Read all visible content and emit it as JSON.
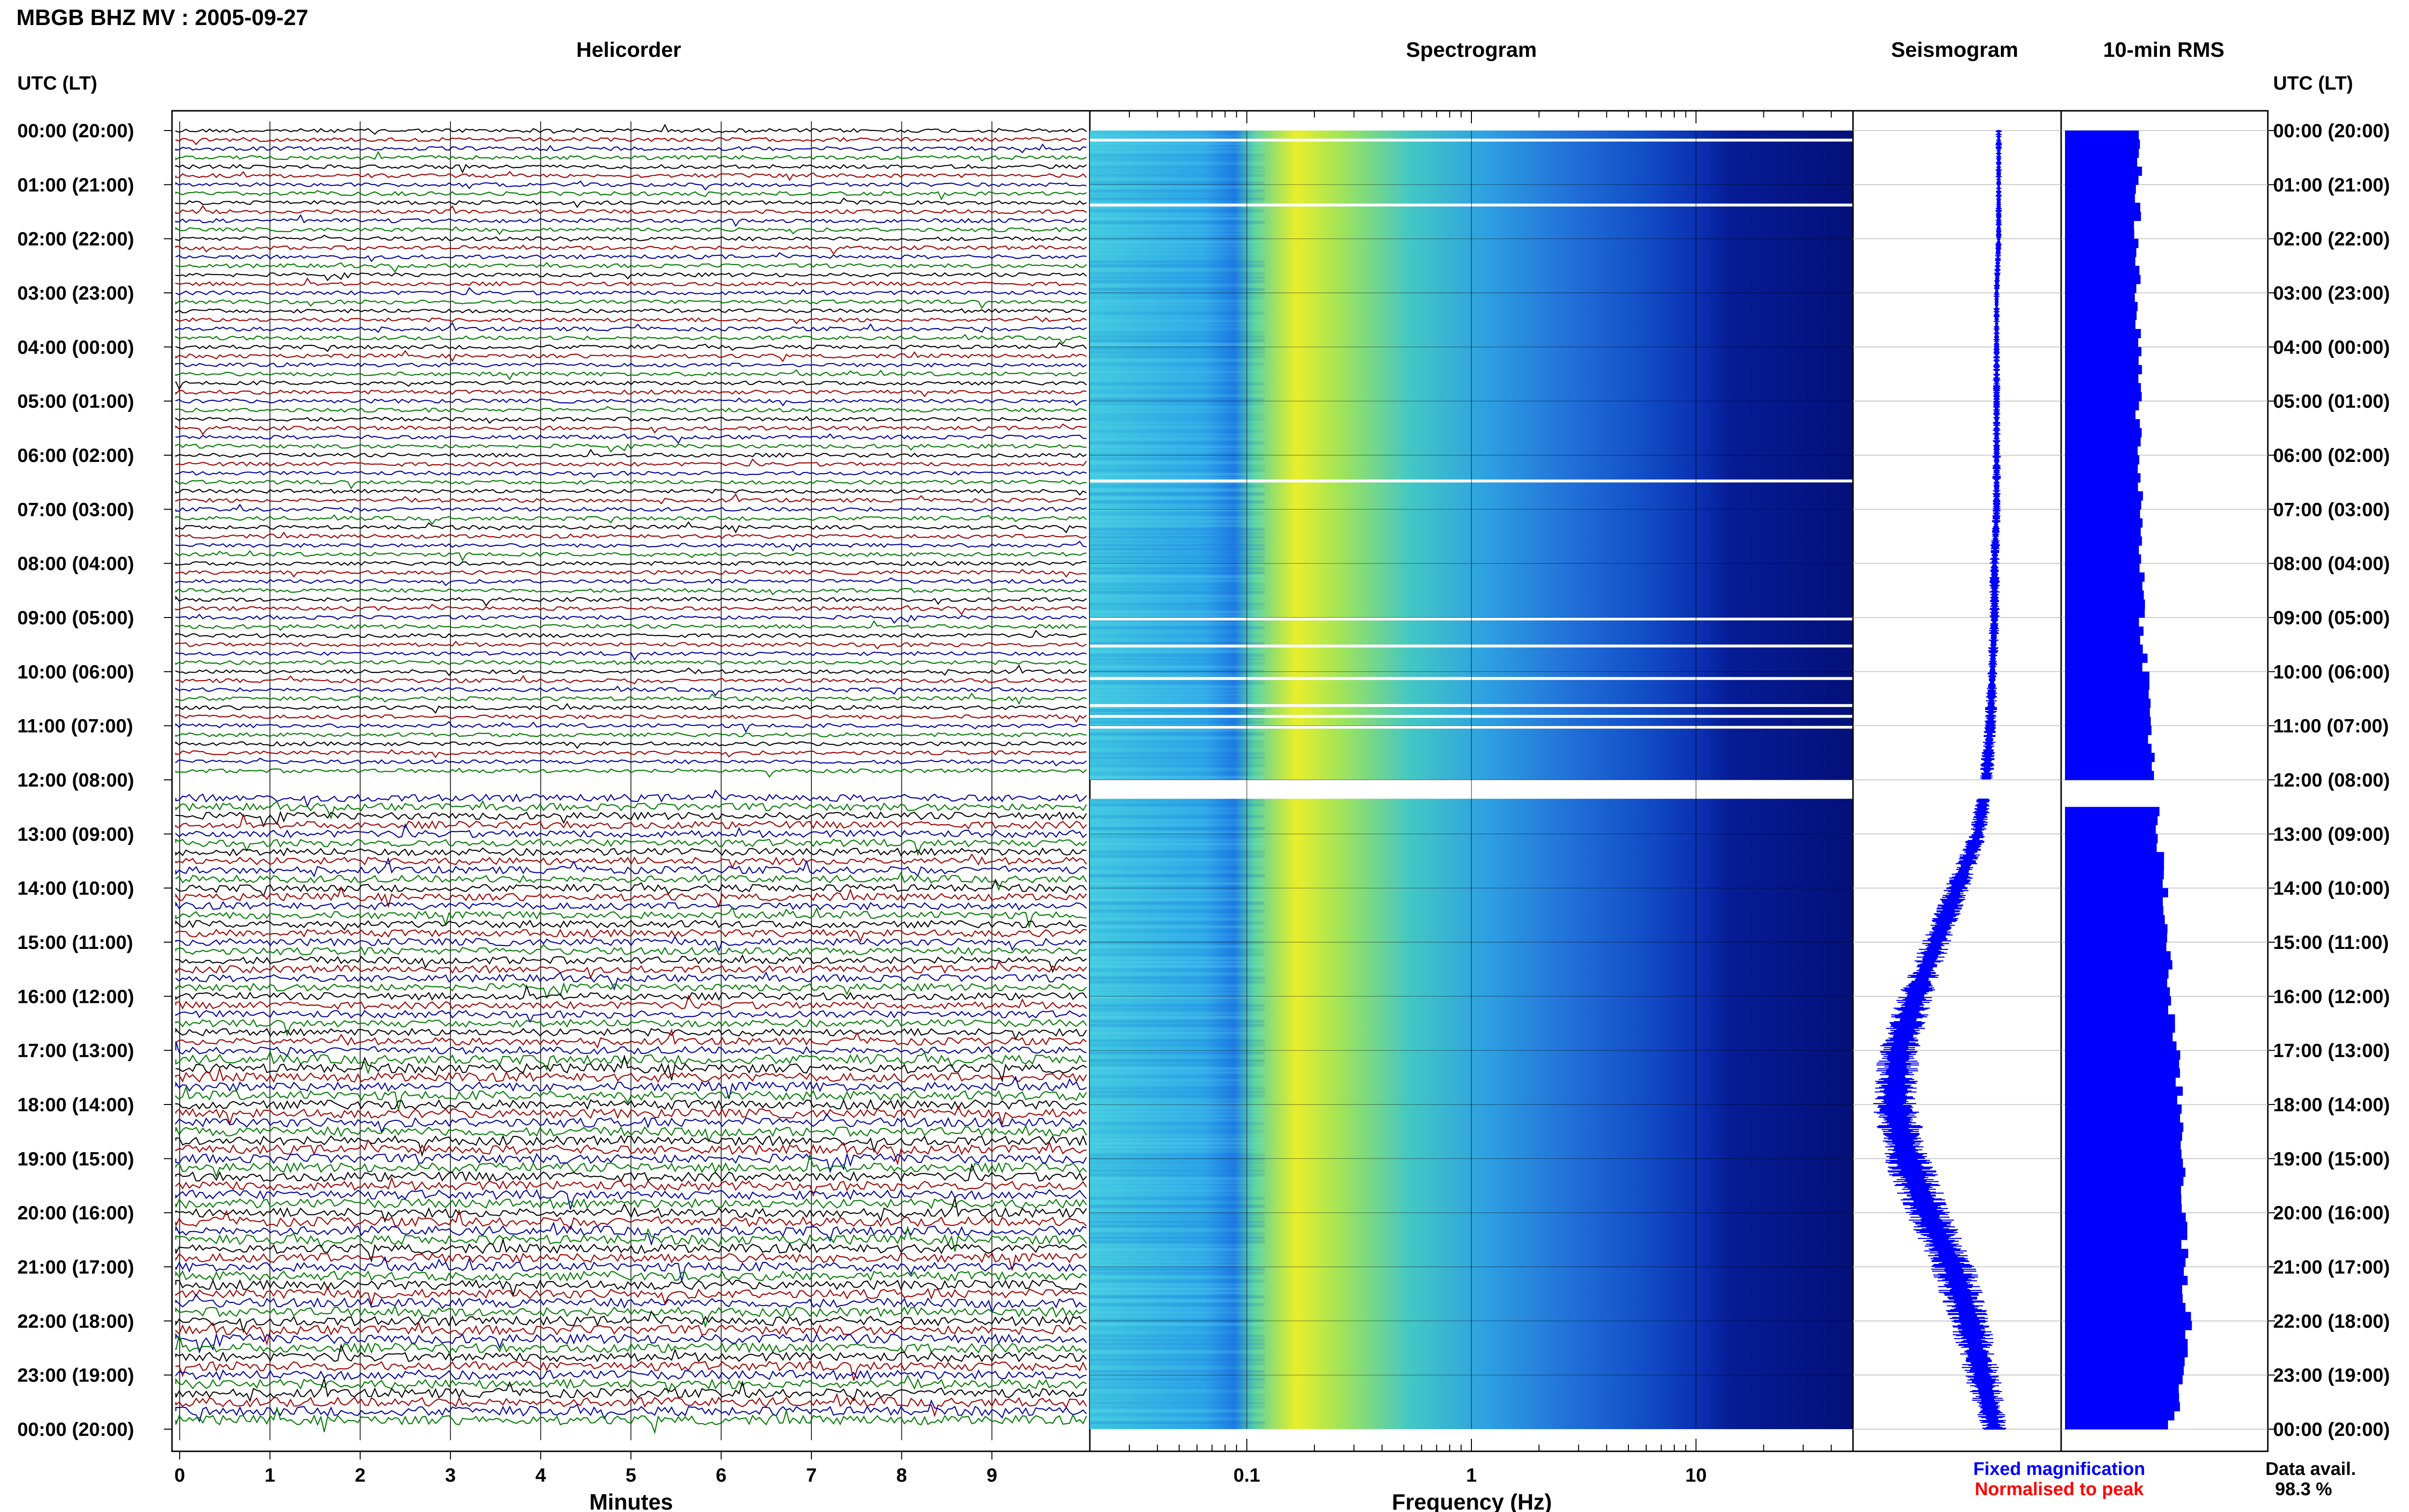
{
  "chart_data": {
    "type": "heatmap",
    "title": "MBGB BHZ MV : 2005-09-27",
    "panels": {
      "helicorder": "Helicorder",
      "spectrogram": "Spectrogram",
      "seismogram": "Seismogram",
      "rms": "10-min RMS"
    },
    "time_axis_label": "UTC (LT)",
    "time_labels": [
      "00:00 (20:00)",
      "01:00 (21:00)",
      "02:00 (22:00)",
      "03:00 (23:00)",
      "04:00 (00:00)",
      "05:00 (01:00)",
      "06:00 (02:00)",
      "07:00 (03:00)",
      "08:00 (04:00)",
      "09:00 (05:00)",
      "10:00 (06:00)",
      "11:00 (07:00)",
      "12:00 (08:00)",
      "13:00 (09:00)",
      "14:00 (10:00)",
      "15:00 (11:00)",
      "16:00 (12:00)",
      "17:00 (13:00)",
      "18:00 (14:00)",
      "19:00 (15:00)",
      "20:00 (16:00)",
      "21:00 (17:00)",
      "22:00 (18:00)",
      "23:00 (19:00)",
      "00:00 (20:00)"
    ],
    "helicorder": {
      "xlabel": "Minutes",
      "x_ticks": [
        "0",
        "1",
        "2",
        "3",
        "4",
        "5",
        "6",
        "7",
        "8",
        "9"
      ],
      "xlim": [
        0,
        10
      ],
      "trace_colors": [
        "#000000",
        "#a00000",
        "#0000a0",
        "#007a00"
      ],
      "traces": 144
    },
    "spectrogram": {
      "xlabel": "Frequency (Hz)",
      "x_scale": "log",
      "x_ticks": [
        "0.1",
        "1",
        "10"
      ],
      "xlim": [
        0.02,
        50
      ],
      "colormap": "jet",
      "data_gap_hours": [
        [
          12.0,
          12.35
        ]
      ]
    },
    "seismogram": {
      "color": "#0000ff",
      "centre_by_hour": [
        0.7,
        0.7,
        0.7,
        0.69,
        0.69,
        0.69,
        0.69,
        0.69,
        0.68,
        0.68,
        0.67,
        0.66,
        0.64,
        0.6,
        0.5,
        0.4,
        0.3,
        0.22,
        0.2,
        0.26,
        0.36,
        0.48,
        0.56,
        0.62,
        0.68
      ],
      "spread_by_hour": [
        0.03,
        0.03,
        0.03,
        0.03,
        0.03,
        0.04,
        0.04,
        0.04,
        0.05,
        0.05,
        0.05,
        0.06,
        0.07,
        0.09,
        0.12,
        0.14,
        0.17,
        0.2,
        0.22,
        0.24,
        0.22,
        0.22,
        0.2,
        0.18,
        0.12
      ]
    },
    "rms": {
      "color": "#0000ff",
      "values_by_hour": [
        0.38,
        0.37,
        0.36,
        0.36,
        0.37,
        0.37,
        0.38,
        0.38,
        0.39,
        0.39,
        0.41,
        0.43,
        0.45,
        0.47,
        0.5,
        0.52,
        0.53,
        0.56,
        0.58,
        0.6,
        0.6,
        0.6,
        0.62,
        0.6,
        0.52
      ],
      "gap_hours": [
        [
          12.0,
          12.35
        ]
      ]
    },
    "legend": {
      "fixed": "Fixed magnification",
      "fixed_color": "#0000ff",
      "normalised": "Normalised to peak",
      "normalised_color": "#ff0000"
    },
    "data_availability": {
      "label": "Data avail.",
      "value": "98.3 %"
    }
  }
}
